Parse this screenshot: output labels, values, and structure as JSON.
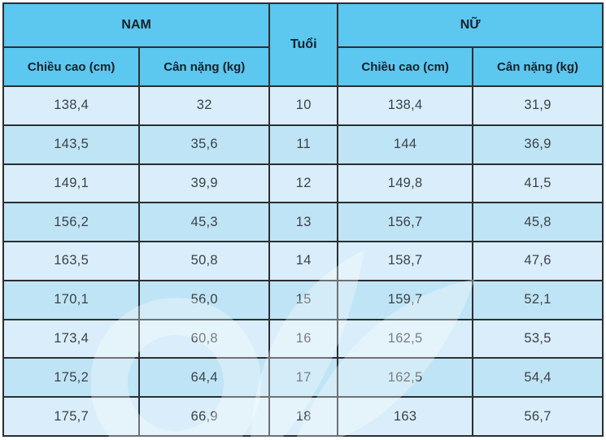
{
  "colors": {
    "header_bg": "#5cc7ef",
    "row_light": "#d9eefa",
    "row_dark": "#bfe4f5",
    "border": "#2b2f33",
    "header_text": "#16202a",
    "data_text": "#3c4248"
  },
  "table": {
    "header": {
      "nam": "NAM",
      "tuoi": "Tuổi",
      "nu": "NỮ",
      "height_label": "Chiều cao (cm)",
      "weight_label": "Cân nặng (kg)"
    },
    "rows": [
      {
        "nam_height": "138,4",
        "nam_weight": "32",
        "age": "10",
        "nu_height": "138,4",
        "nu_weight": "31,9"
      },
      {
        "nam_height": "143,5",
        "nam_weight": "35,6",
        "age": "11",
        "nu_height": "144",
        "nu_weight": "36,9"
      },
      {
        "nam_height": "149,1",
        "nam_weight": "39,9",
        "age": "12",
        "nu_height": "149,8",
        "nu_weight": "41,5"
      },
      {
        "nam_height": "156,2",
        "nam_weight": "45,3",
        "age": "13",
        "nu_height": "156,7",
        "nu_weight": "45,8"
      },
      {
        "nam_height": "163,5",
        "nam_weight": "50,8",
        "age": "14",
        "nu_height": "158,7",
        "nu_weight": "47,6"
      },
      {
        "nam_height": "170,1",
        "nam_weight": "56,0",
        "age": "15",
        "nu_height": "159,7",
        "nu_weight": "52,1"
      },
      {
        "nam_height": "173,4",
        "nam_weight": "60,8",
        "age": "16",
        "nu_height": "162,5",
        "nu_weight": "53,5"
      },
      {
        "nam_height": "175,2",
        "nam_weight": "64,4",
        "age": "17",
        "nu_height": "162,5",
        "nu_weight": "54,4"
      },
      {
        "nam_height": "175,7",
        "nam_weight": "66,9",
        "age": "18",
        "nu_height": "163",
        "nu_weight": "56,7"
      }
    ]
  },
  "chart_data": {
    "type": "table",
    "column_groups": [
      {
        "label": "NAM",
        "columns": [
          "Chiều cao (cm)",
          "Cân nặng (kg)"
        ]
      },
      {
        "label": "Tuổi",
        "columns": []
      },
      {
        "label": "NỮ",
        "columns": [
          "Chiều cao (cm)",
          "Cân nặng (kg)"
        ]
      }
    ],
    "ages": [
      10,
      11,
      12,
      13,
      14,
      15,
      16,
      17,
      18
    ],
    "series": [
      {
        "name": "NAM Chiều cao (cm)",
        "values": [
          138.4,
          143.5,
          149.1,
          156.2,
          163.5,
          170.1,
          173.4,
          175.2,
          175.7
        ]
      },
      {
        "name": "NAM Cân nặng (kg)",
        "values": [
          32,
          35.6,
          39.9,
          45.3,
          50.8,
          56.0,
          60.8,
          64.4,
          66.9
        ]
      },
      {
        "name": "NỮ Chiều cao (cm)",
        "values": [
          138.4,
          144,
          149.8,
          156.7,
          158.7,
          159.7,
          162.5,
          162.5,
          163
        ]
      },
      {
        "name": "NỮ Cân nặng (kg)",
        "values": [
          31.9,
          36.9,
          41.5,
          45.8,
          47.6,
          52.1,
          53.5,
          54.4,
          56.7
        ]
      }
    ],
    "decimal_separator": ","
  }
}
